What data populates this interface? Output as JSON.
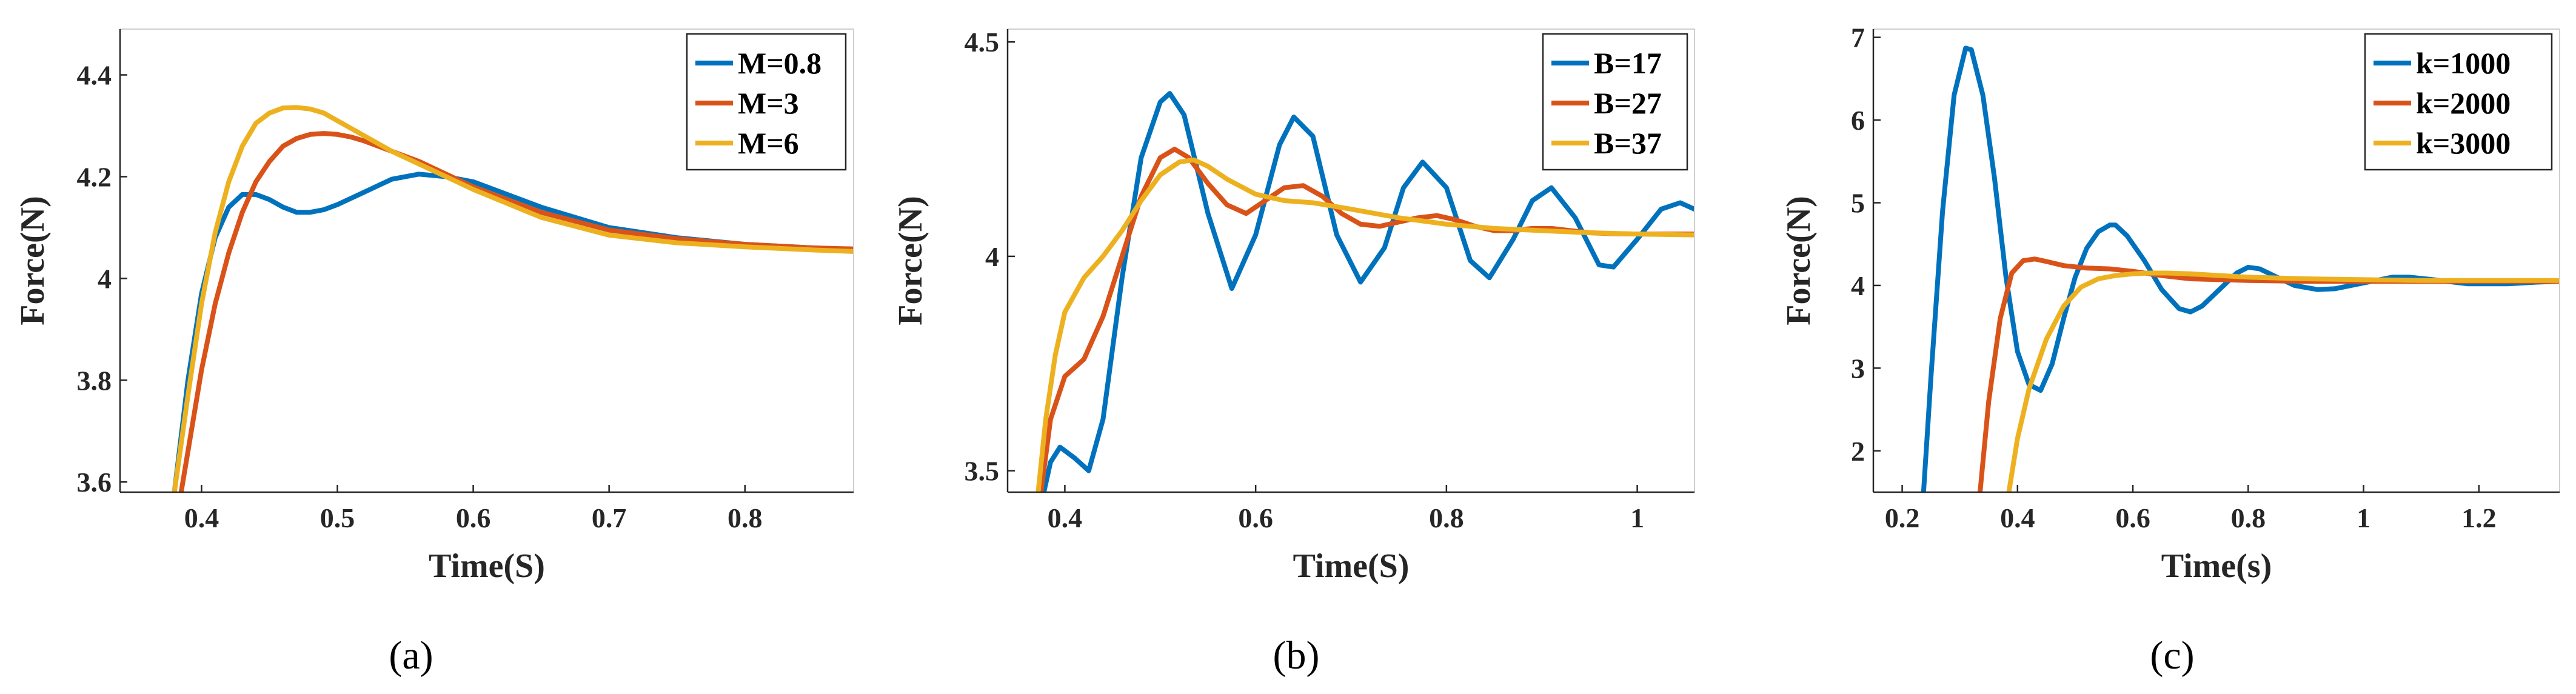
{
  "chart_data": [
    {
      "type": "line",
      "panel_label": "(a)",
      "title": "",
      "xlabel": "Time(S)",
      "ylabel": "Force(N)",
      "xlim": [
        0.34,
        0.88
      ],
      "ylim": [
        3.58,
        4.49
      ],
      "xticks": [
        0.4,
        0.5,
        0.6,
        0.7,
        0.8
      ],
      "xtick_labels": [
        "0.4",
        "0.5",
        "0.6",
        "0.7",
        "0.8"
      ],
      "yticks": [
        3.6,
        3.8,
        4.0,
        4.2,
        4.4
      ],
      "ytick_labels": [
        "3.6",
        "3.8",
        "4",
        "4.2",
        "4.4"
      ],
      "legend_position": "top-right",
      "series": [
        {
          "name": "M=0.8",
          "color": "#0072BD",
          "x": [
            0.38,
            0.39,
            0.4,
            0.41,
            0.42,
            0.43,
            0.44,
            0.45,
            0.46,
            0.47,
            0.48,
            0.49,
            0.5,
            0.52,
            0.54,
            0.56,
            0.58,
            0.6,
            0.65,
            0.7,
            0.75,
            0.8,
            0.85,
            0.88
          ],
          "y": [
            3.58,
            3.8,
            3.97,
            4.08,
            4.14,
            4.165,
            4.165,
            4.155,
            4.14,
            4.13,
            4.13,
            4.135,
            4.145,
            4.17,
            4.195,
            4.205,
            4.2,
            4.19,
            4.14,
            4.1,
            4.08,
            4.067,
            4.06,
            4.057
          ]
        },
        {
          "name": "M=3",
          "color": "#D95319",
          "x": [
            0.385,
            0.39,
            0.4,
            0.41,
            0.42,
            0.43,
            0.44,
            0.45,
            0.46,
            0.47,
            0.48,
            0.49,
            0.5,
            0.51,
            0.52,
            0.54,
            0.56,
            0.58,
            0.6,
            0.65,
            0.7,
            0.75,
            0.8,
            0.85,
            0.88
          ],
          "y": [
            3.58,
            3.66,
            3.82,
            3.95,
            4.05,
            4.13,
            4.19,
            4.23,
            4.26,
            4.275,
            4.283,
            4.285,
            4.283,
            4.278,
            4.27,
            4.25,
            4.23,
            4.205,
            4.18,
            4.13,
            4.095,
            4.078,
            4.067,
            4.06,
            4.058
          ]
        },
        {
          "name": "M=6",
          "color": "#EDB120",
          "x": [
            0.38,
            0.39,
            0.4,
            0.41,
            0.42,
            0.43,
            0.44,
            0.45,
            0.46,
            0.47,
            0.48,
            0.49,
            0.5,
            0.52,
            0.54,
            0.56,
            0.58,
            0.6,
            0.65,
            0.7,
            0.75,
            0.8,
            0.85,
            0.88
          ],
          "y": [
            3.58,
            3.77,
            3.95,
            4.09,
            4.19,
            4.26,
            4.305,
            4.325,
            4.335,
            4.336,
            4.333,
            4.325,
            4.31,
            4.28,
            4.25,
            4.225,
            4.2,
            4.175,
            4.12,
            4.085,
            4.07,
            4.062,
            4.056,
            4.053
          ]
        }
      ]
    },
    {
      "type": "line",
      "panel_label": "(b)",
      "title": "",
      "xlabel": "Time(S)",
      "ylabel": "Force(N)",
      "xlim": [
        0.34,
        1.06
      ],
      "ylim": [
        3.45,
        4.53
      ],
      "xticks": [
        0.4,
        0.6,
        0.8,
        1.0
      ],
      "xtick_labels": [
        "0.4",
        "0.6",
        "0.8",
        "1"
      ],
      "yticks": [
        3.5,
        4.0,
        4.5
      ],
      "ytick_labels": [
        "3.5",
        "4",
        "4.5"
      ],
      "legend_position": "top-right",
      "series": [
        {
          "name": "B=17",
          "color": "#0072BD",
          "x": [
            0.378,
            0.385,
            0.395,
            0.41,
            0.425,
            0.44,
            0.46,
            0.48,
            0.5,
            0.51,
            0.525,
            0.55,
            0.575,
            0.6,
            0.625,
            0.64,
            0.66,
            0.685,
            0.71,
            0.735,
            0.755,
            0.775,
            0.8,
            0.825,
            0.845,
            0.87,
            0.89,
            0.91,
            0.935,
            0.96,
            0.975,
            1.0,
            1.025,
            1.045,
            1.06
          ],
          "y": [
            3.45,
            3.52,
            3.555,
            3.53,
            3.5,
            3.62,
            3.95,
            4.23,
            4.36,
            4.38,
            4.33,
            4.1,
            3.925,
            4.05,
            4.26,
            4.325,
            4.28,
            4.05,
            3.94,
            4.02,
            4.16,
            4.22,
            4.16,
            3.99,
            3.95,
            4.04,
            4.13,
            4.16,
            4.09,
            3.98,
            3.975,
            4.04,
            4.11,
            4.125,
            4.11
          ]
        },
        {
          "name": "B=27",
          "color": "#D95319",
          "x": [
            0.375,
            0.385,
            0.4,
            0.42,
            0.44,
            0.46,
            0.48,
            0.5,
            0.515,
            0.53,
            0.55,
            0.57,
            0.59,
            0.61,
            0.63,
            0.65,
            0.67,
            0.69,
            0.71,
            0.73,
            0.75,
            0.77,
            0.79,
            0.81,
            0.83,
            0.85,
            0.87,
            0.89,
            0.91,
            0.93,
            0.95,
            0.97,
            1.0,
            1.03,
            1.06
          ],
          "y": [
            3.45,
            3.62,
            3.72,
            3.76,
            3.86,
            4.0,
            4.14,
            4.23,
            4.25,
            4.23,
            4.17,
            4.12,
            4.1,
            4.13,
            4.16,
            4.165,
            4.14,
            4.1,
            4.075,
            4.07,
            4.08,
            4.09,
            4.095,
            4.085,
            4.07,
            4.06,
            4.06,
            4.065,
            4.065,
            4.06,
            4.055,
            4.053,
            4.052,
            4.052,
            4.052
          ]
        },
        {
          "name": "B=37",
          "color": "#EDB120",
          "x": [
            0.372,
            0.38,
            0.39,
            0.4,
            0.42,
            0.44,
            0.46,
            0.48,
            0.5,
            0.52,
            0.535,
            0.55,
            0.57,
            0.6,
            0.63,
            0.66,
            0.7,
            0.75,
            0.8,
            0.85,
            0.9,
            0.95,
            1.0,
            1.06
          ],
          "y": [
            3.45,
            3.62,
            3.77,
            3.87,
            3.95,
            4.0,
            4.06,
            4.13,
            4.19,
            4.22,
            4.225,
            4.21,
            4.18,
            4.145,
            4.13,
            4.125,
            4.11,
            4.09,
            4.075,
            4.065,
            4.06,
            4.055,
            4.052,
            4.05
          ]
        }
      ]
    },
    {
      "type": "line",
      "panel_label": "(c)",
      "title": "",
      "xlabel": "Time(s)",
      "ylabel": "Force(N)",
      "xlim": [
        0.15,
        1.34
      ],
      "ylim": [
        1.5,
        7.1
      ],
      "xticks": [
        0.2,
        0.4,
        0.6,
        0.8,
        1.0,
        1.2
      ],
      "xtick_labels": [
        "0.2",
        "0.4",
        "0.6",
        "0.8",
        "1",
        "1.2"
      ],
      "yticks": [
        2,
        3,
        4,
        5,
        6,
        7
      ],
      "ytick_labels": [
        "2",
        "3",
        "4",
        "5",
        "6",
        "7"
      ],
      "legend_position": "top-right",
      "series": [
        {
          "name": "k=1000",
          "color": "#0072BD",
          "x": [
            0.237,
            0.25,
            0.27,
            0.29,
            0.31,
            0.32,
            0.34,
            0.36,
            0.38,
            0.4,
            0.42,
            0.44,
            0.46,
            0.48,
            0.5,
            0.52,
            0.54,
            0.56,
            0.57,
            0.59,
            0.62,
            0.65,
            0.68,
            0.7,
            0.72,
            0.75,
            0.78,
            0.8,
            0.82,
            0.85,
            0.88,
            0.92,
            0.95,
            1.0,
            1.05,
            1.08,
            1.12,
            1.18,
            1.25,
            1.3,
            1.34
          ],
          "y": [
            1.5,
            2.9,
            4.9,
            6.3,
            6.87,
            6.85,
            6.3,
            5.3,
            4.1,
            3.2,
            2.8,
            2.73,
            3.05,
            3.6,
            4.1,
            4.45,
            4.65,
            4.73,
            4.73,
            4.6,
            4.3,
            3.95,
            3.72,
            3.68,
            3.75,
            3.95,
            4.15,
            4.22,
            4.2,
            4.1,
            4.0,
            3.95,
            3.96,
            4.03,
            4.1,
            4.1,
            4.07,
            4.02,
            4.02,
            4.04,
            4.05
          ]
        },
        {
          "name": "k=2000",
          "color": "#D95319",
          "x": [
            0.335,
            0.35,
            0.37,
            0.39,
            0.41,
            0.43,
            0.45,
            0.48,
            0.52,
            0.56,
            0.6,
            0.65,
            0.7,
            0.75,
            0.8,
            0.9,
            1.0,
            1.1,
            1.2,
            1.34
          ],
          "y": [
            1.5,
            2.6,
            3.6,
            4.15,
            4.3,
            4.32,
            4.29,
            4.24,
            4.21,
            4.2,
            4.17,
            4.12,
            4.08,
            4.07,
            4.06,
            4.05,
            4.05,
            4.05,
            4.05,
            4.05
          ]
        },
        {
          "name": "k=3000",
          "color": "#EDB120",
          "x": [
            0.385,
            0.4,
            0.42,
            0.45,
            0.48,
            0.51,
            0.54,
            0.57,
            0.6,
            0.63,
            0.66,
            0.7,
            0.75,
            0.8,
            0.9,
            1.0,
            1.1,
            1.2,
            1.34
          ],
          "y": [
            1.5,
            2.15,
            2.75,
            3.35,
            3.75,
            3.98,
            4.08,
            4.12,
            4.14,
            4.15,
            4.15,
            4.14,
            4.12,
            4.1,
            4.08,
            4.07,
            4.06,
            4.06,
            4.06
          ]
        }
      ]
    }
  ]
}
